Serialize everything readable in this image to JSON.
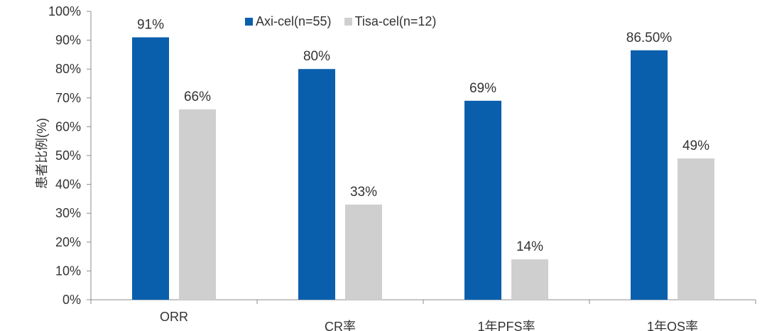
{
  "chart_data": {
    "type": "bar",
    "categories": [
      "ORR",
      "CR率",
      "1年PFS率",
      "1年OS率"
    ],
    "series": [
      {
        "name": "Axi-cel(n=55)",
        "values": [
          91,
          80,
          69,
          86.5
        ],
        "labels": [
          "91%",
          "80%",
          "69%",
          "86.50%"
        ],
        "color": "#0a5fad"
      },
      {
        "name": "Tisa-cel(n=12)",
        "values": [
          66,
          33,
          14,
          49
        ],
        "labels": [
          "66%",
          "33%",
          "14%",
          "49%"
        ],
        "color": "#d0cfd0"
      }
    ],
    "ylabel": "患者比例(%)",
    "ylim": [
      0,
      100
    ],
    "yticks": [
      "0%",
      "10%",
      "20%",
      "30%",
      "40%",
      "50%",
      "60%",
      "70%",
      "80%",
      "90%",
      "100%"
    ],
    "grid": false,
    "legend_position": "top-center"
  }
}
